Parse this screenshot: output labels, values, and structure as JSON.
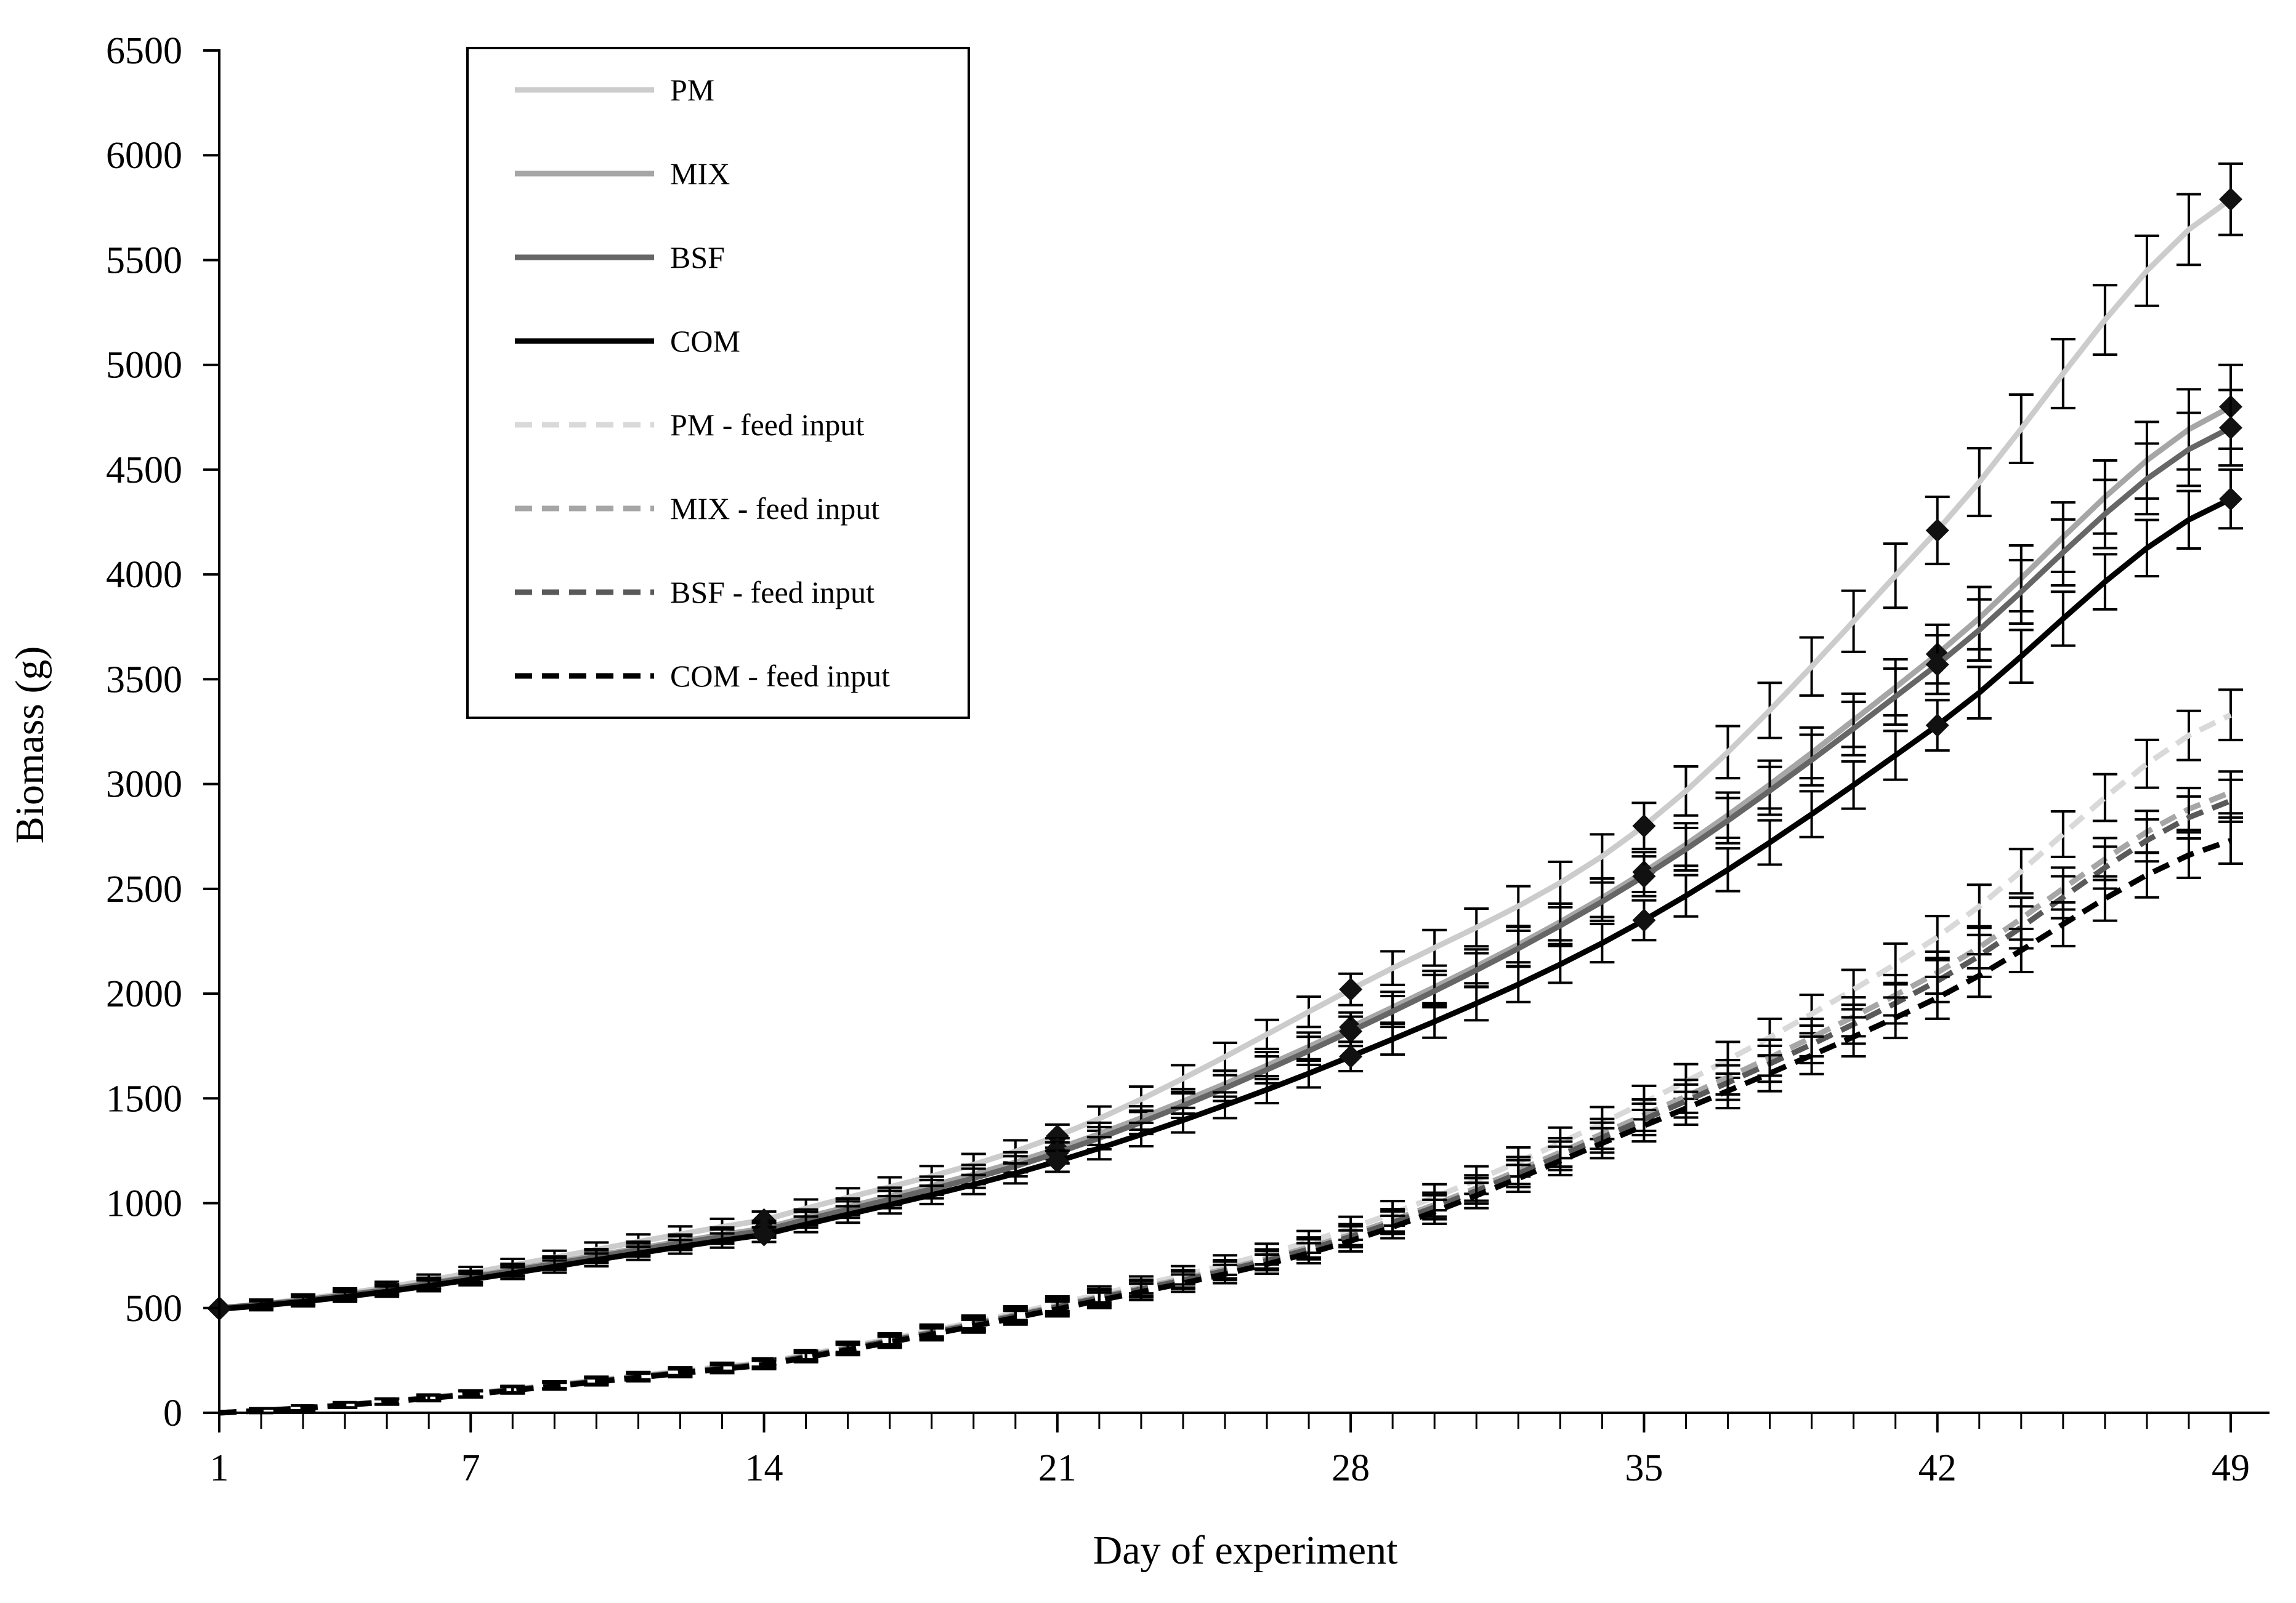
{
  "chart_data": {
    "type": "line",
    "title": "",
    "xlabel": "Day of experiment",
    "ylabel": "Biomass (g)",
    "xlim": [
      1,
      49
    ],
    "ylim": [
      0,
      6500
    ],
    "xticks": [
      1,
      7,
      14,
      21,
      28,
      35,
      42,
      49
    ],
    "yticks": [
      0,
      500,
      1000,
      1500,
      2000,
      2500,
      3000,
      3500,
      4000,
      4500,
      5000,
      5500,
      6000,
      6500
    ],
    "grid": false,
    "legend_position": "top-left",
    "error_bars": true,
    "x": [
      1,
      14,
      21,
      28,
      35,
      42,
      49
    ],
    "series": [
      {
        "name": "PM",
        "color": "#cccccc",
        "dash": "solid",
        "values": [
          500,
          920,
          1320,
          2020,
          2800,
          4210,
          5790
        ],
        "err": [
          20,
          40,
          55,
          75,
          110,
          160,
          170
        ]
      },
      {
        "name": "MIX",
        "color": "#a6a6a6",
        "dash": "solid",
        "values": [
          500,
          880,
          1260,
          1840,
          2580,
          3620,
          4800
        ],
        "err": [
          20,
          35,
          50,
          70,
          95,
          140,
          200
        ]
      },
      {
        "name": "BSF",
        "color": "#666666",
        "dash": "solid",
        "values": [
          500,
          870,
          1240,
          1820,
          2560,
          3570,
          4700
        ],
        "err": [
          20,
          35,
          50,
          70,
          95,
          140,
          180
        ]
      },
      {
        "name": "COM",
        "color": "#000000",
        "dash": "solid",
        "values": [
          495,
          850,
          1200,
          1700,
          2350,
          3280,
          4360
        ],
        "err": [
          20,
          35,
          50,
          70,
          95,
          120,
          140
        ]
      },
      {
        "name": "PM - feed input",
        "color": "#d9d9d9",
        "dash": "dashed",
        "values": [
          0,
          240,
          520,
          880,
          1480,
          2270,
          3330
        ],
        "err": [
          10,
          20,
          35,
          55,
          80,
          100,
          120
        ]
      },
      {
        "name": "MIX - feed input",
        "color": "#a6a6a6",
        "dash": "dashed",
        "values": [
          0,
          235,
          510,
          850,
          1420,
          2100,
          2960
        ],
        "err": [
          10,
          20,
          35,
          50,
          75,
          100,
          100
        ]
      },
      {
        "name": "BSF - feed input",
        "color": "#595959",
        "dash": "dashed",
        "values": [
          0,
          232,
          505,
          840,
          1400,
          2060,
          2920
        ],
        "err": [
          10,
          20,
          35,
          50,
          75,
          100,
          100
        ]
      },
      {
        "name": "COM - feed input",
        "color": "#000000",
        "dash": "dashed",
        "values": [
          0,
          228,
          495,
          820,
          1370,
          1980,
          2730
        ],
        "err": [
          10,
          20,
          35,
          50,
          75,
          100,
          110
        ]
      }
    ]
  }
}
